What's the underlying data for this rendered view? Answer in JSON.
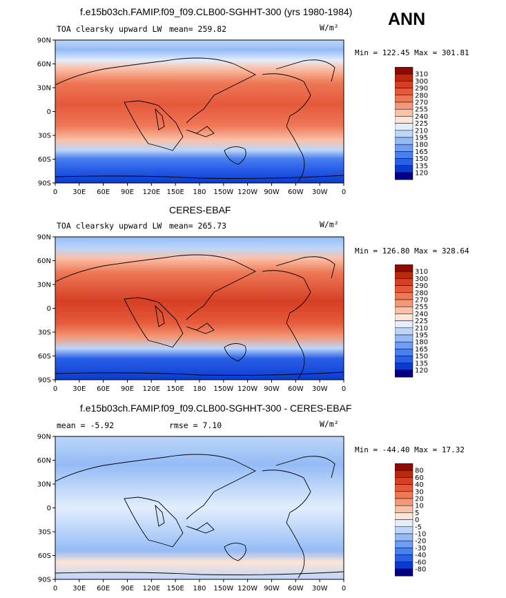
{
  "season": "ANN",
  "colors": {
    "model_obs_scale": [
      "#00008b",
      "#0a3bd0",
      "#2a60e8",
      "#4a7fee",
      "#6e9df2",
      "#94bbf6",
      "#bcd6fa",
      "#e2eefc",
      "#fde4d6",
      "#fbc0a8",
      "#f49877",
      "#ee7856",
      "#e5593b",
      "#d63f24",
      "#b9290f",
      "#8b0c00"
    ],
    "diff_scale": [
      "#00008b",
      "#0a3bd0",
      "#2a60e8",
      "#4a7fee",
      "#6e9df2",
      "#94bbf6",
      "#bcd6fa",
      "#e2eefc",
      "#fde4d6",
      "#fbc0a8",
      "#f49877",
      "#ee7856",
      "#e5593b",
      "#d63f24",
      "#b9290f",
      "#8b0c00"
    ]
  },
  "panels": [
    {
      "title": "f.e15b03ch.FAMIP.f09_f09.CLB00-SGHHT-300 (yrs 1980-1984)",
      "left_label": "TOA clearsky upward LW",
      "center_label": "mean= 259.82",
      "units": "W/m²",
      "minmax": "Min = 122.45 Max = 301.81",
      "colorbar_labels": [
        "310",
        "300",
        "290",
        "280",
        "270",
        "255",
        "240",
        "225",
        "210",
        "195",
        "180",
        "165",
        "150",
        "135",
        "120"
      ],
      "type": "field"
    },
    {
      "title": "CERES-EBAF",
      "left_label": "TOA clearsky upward LW",
      "center_label": "mean= 265.73",
      "units": "W/m²",
      "minmax": "Min = 126.80 Max = 328.64",
      "colorbar_labels": [
        "310",
        "300",
        "290",
        "280",
        "270",
        "255",
        "240",
        "225",
        "210",
        "195",
        "180",
        "165",
        "150",
        "135",
        "120"
      ],
      "type": "field"
    },
    {
      "title": "f.e15b03ch.FAMIP.f09_f09.CLB00-SGHHT-300 - CERES-EBAF",
      "left_label": "mean =   -5.92",
      "center_label": "rmse =    7.10",
      "units": "W/m²",
      "minmax": "Min = -44.40 Max =  17.32",
      "colorbar_labels": [
        "80",
        "60",
        "40",
        "30",
        "20",
        "10",
        "5",
        "0",
        "-5",
        "-10",
        "-20",
        "-30",
        "-40",
        "-60",
        "-80"
      ],
      "type": "diff"
    }
  ],
  "lat_ticks": [
    "90N",
    "60N",
    "30N",
    "0",
    "30S",
    "60S",
    "90S"
  ],
  "lon_ticks": [
    "0",
    "30E",
    "60E",
    "90E",
    "120E",
    "150E",
    "180",
    "150W",
    "120W",
    "90W",
    "60W",
    "30W",
    "0"
  ]
}
